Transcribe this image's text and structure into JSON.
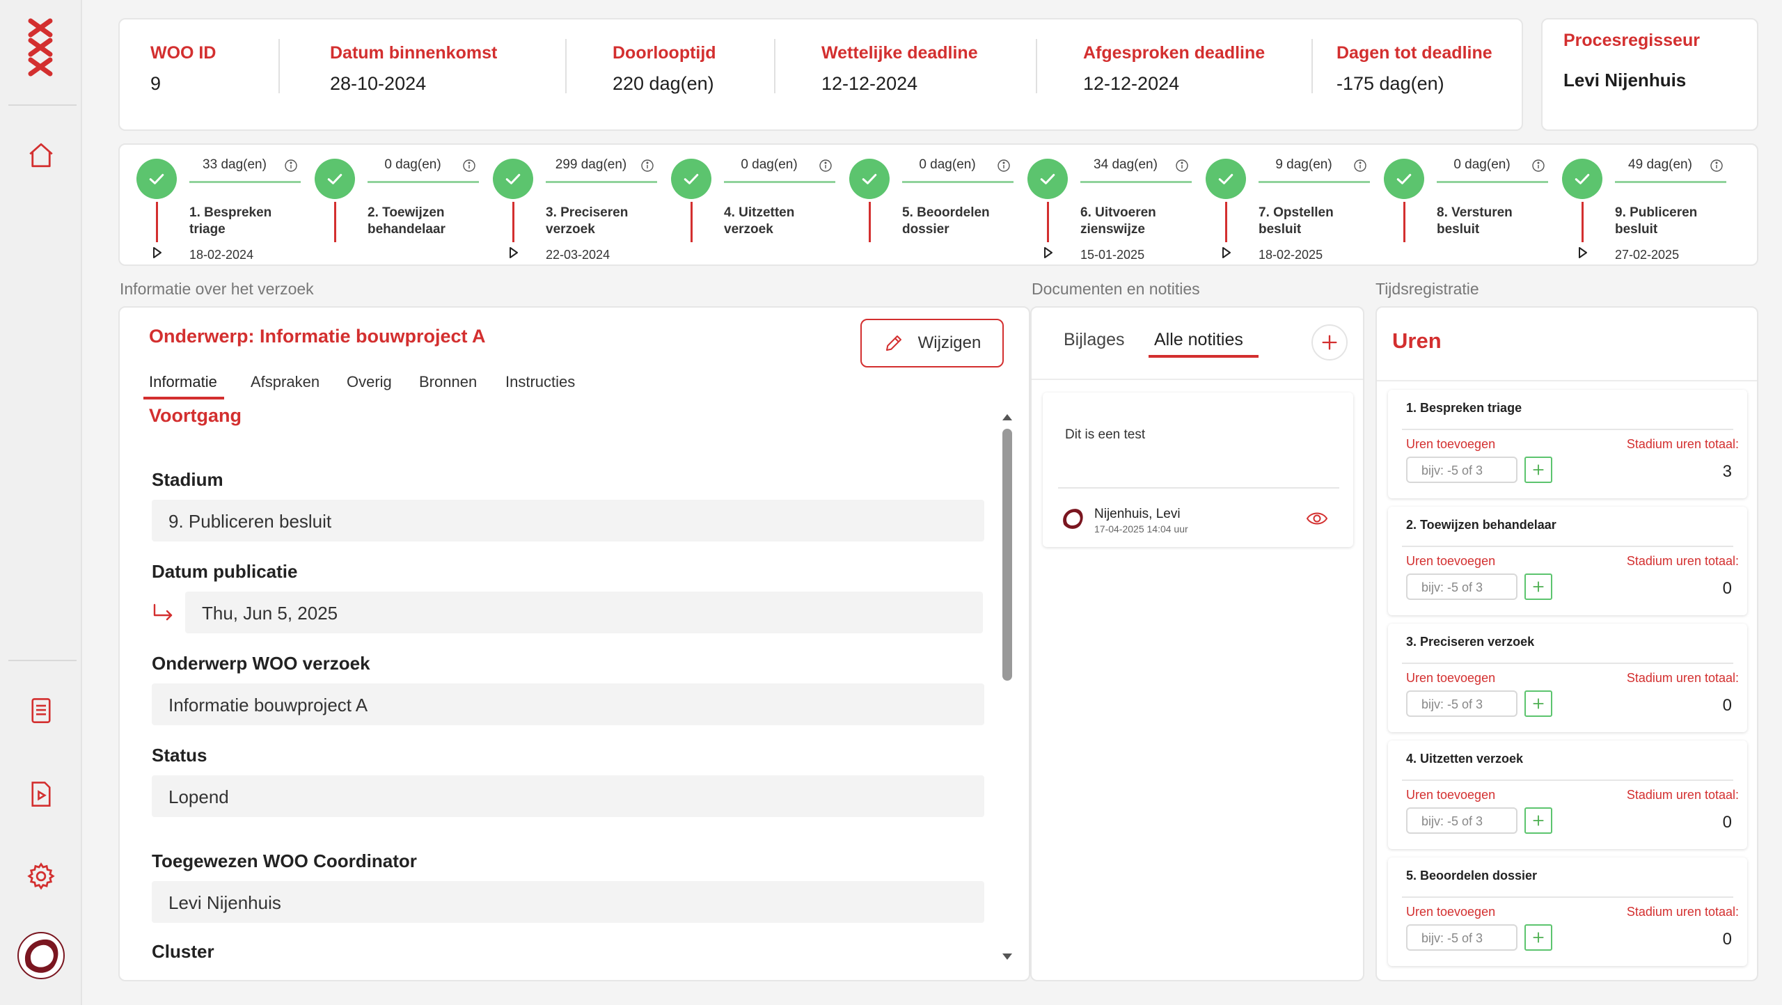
{
  "header": {
    "fields": [
      {
        "label": "WOO ID",
        "value": "9"
      },
      {
        "label": "Datum binnenkomst",
        "value": "28-10-2024"
      },
      {
        "label": "Doorlooptijd",
        "value": "220 dag(en)"
      },
      {
        "label": "Wettelijke deadline",
        "value": "12-12-2024"
      },
      {
        "label": "Afgesproken deadline",
        "value": "12-12-2024"
      },
      {
        "label": "Dagen tot deadline",
        "value": "-175 dag(en)"
      }
    ],
    "regisseur": {
      "label": "Procesregisseur",
      "value": "Levi Nijenhuis"
    }
  },
  "timeline": [
    {
      "days": "33 dag(en)",
      "label": "1. Bespreken triage",
      "date": "18-02-2024"
    },
    {
      "days": "0 dag(en)",
      "label": "2. Toewijzen behandelaar",
      "date": ""
    },
    {
      "days": "299 dag(en)",
      "label": "3. Preciseren verzoek",
      "date": "22-03-2024"
    },
    {
      "days": "0 dag(en)",
      "label": "4. Uitzetten verzoek",
      "date": ""
    },
    {
      "days": "0 dag(en)",
      "label": "5. Beoordelen dossier",
      "date": ""
    },
    {
      "days": "34 dag(en)",
      "label": "6. Uitvoeren zienswijze",
      "date": "15-01-2025"
    },
    {
      "days": "9 dag(en)",
      "label": "7. Opstellen besluit",
      "date": "18-02-2025"
    },
    {
      "days": "0 dag(en)",
      "label": "8. Versturen besluit",
      "date": ""
    },
    {
      "days": "49 dag(en)",
      "label": "9. Publiceren besluit",
      "date": "27-02-2025"
    }
  ],
  "sections": {
    "info": "Informatie over het verzoek",
    "docs": "Documenten en notities",
    "time": "Tijdsregistratie"
  },
  "info": {
    "subject": "Onderwerp: Informatie bouwproject A",
    "edit_label": "Wijzigen",
    "tabs": [
      "Informatie",
      "Afspraken",
      "Overig",
      "Bronnen",
      "Instructies"
    ],
    "progress_title": "Voortgang",
    "fields": {
      "stadium_label": "Stadium",
      "stadium_value": "9. Publiceren besluit",
      "publicatie_label": "Datum publicatie",
      "publicatie_value": "Thu, Jun 5, 2025",
      "onderwerp_label": "Onderwerp WOO verzoek",
      "onderwerp_value": "Informatie bouwproject A",
      "status_label": "Status",
      "status_value": "Lopend",
      "coordinator_label": "Toegewezen WOO Coordinator",
      "coordinator_value": "Levi Nijenhuis",
      "cluster_label": "Cluster"
    }
  },
  "docs": {
    "tabs": [
      "Bijlages",
      "Alle notities"
    ],
    "note": {
      "text": "Dit is een test",
      "author": "Nijenhuis, Levi",
      "timestamp": "17-04-2025 14:04 uur"
    }
  },
  "hours": {
    "title": "Uren",
    "add_label": "Uren toevoegen",
    "total_label": "Stadium uren totaal:",
    "placeholder": "bijv: -5 of 3",
    "items": [
      {
        "name": "1. Bespreken triage",
        "total": "3"
      },
      {
        "name": "2. Toewijzen behandelaar",
        "total": "0"
      },
      {
        "name": "3. Preciseren verzoek",
        "total": "0"
      },
      {
        "name": "4. Uitzetten verzoek",
        "total": "0"
      },
      {
        "name": "5. Beoordelen dossier",
        "total": "0"
      }
    ]
  },
  "colors": {
    "accent": "#d32f2f",
    "success": "#5cc46e"
  }
}
